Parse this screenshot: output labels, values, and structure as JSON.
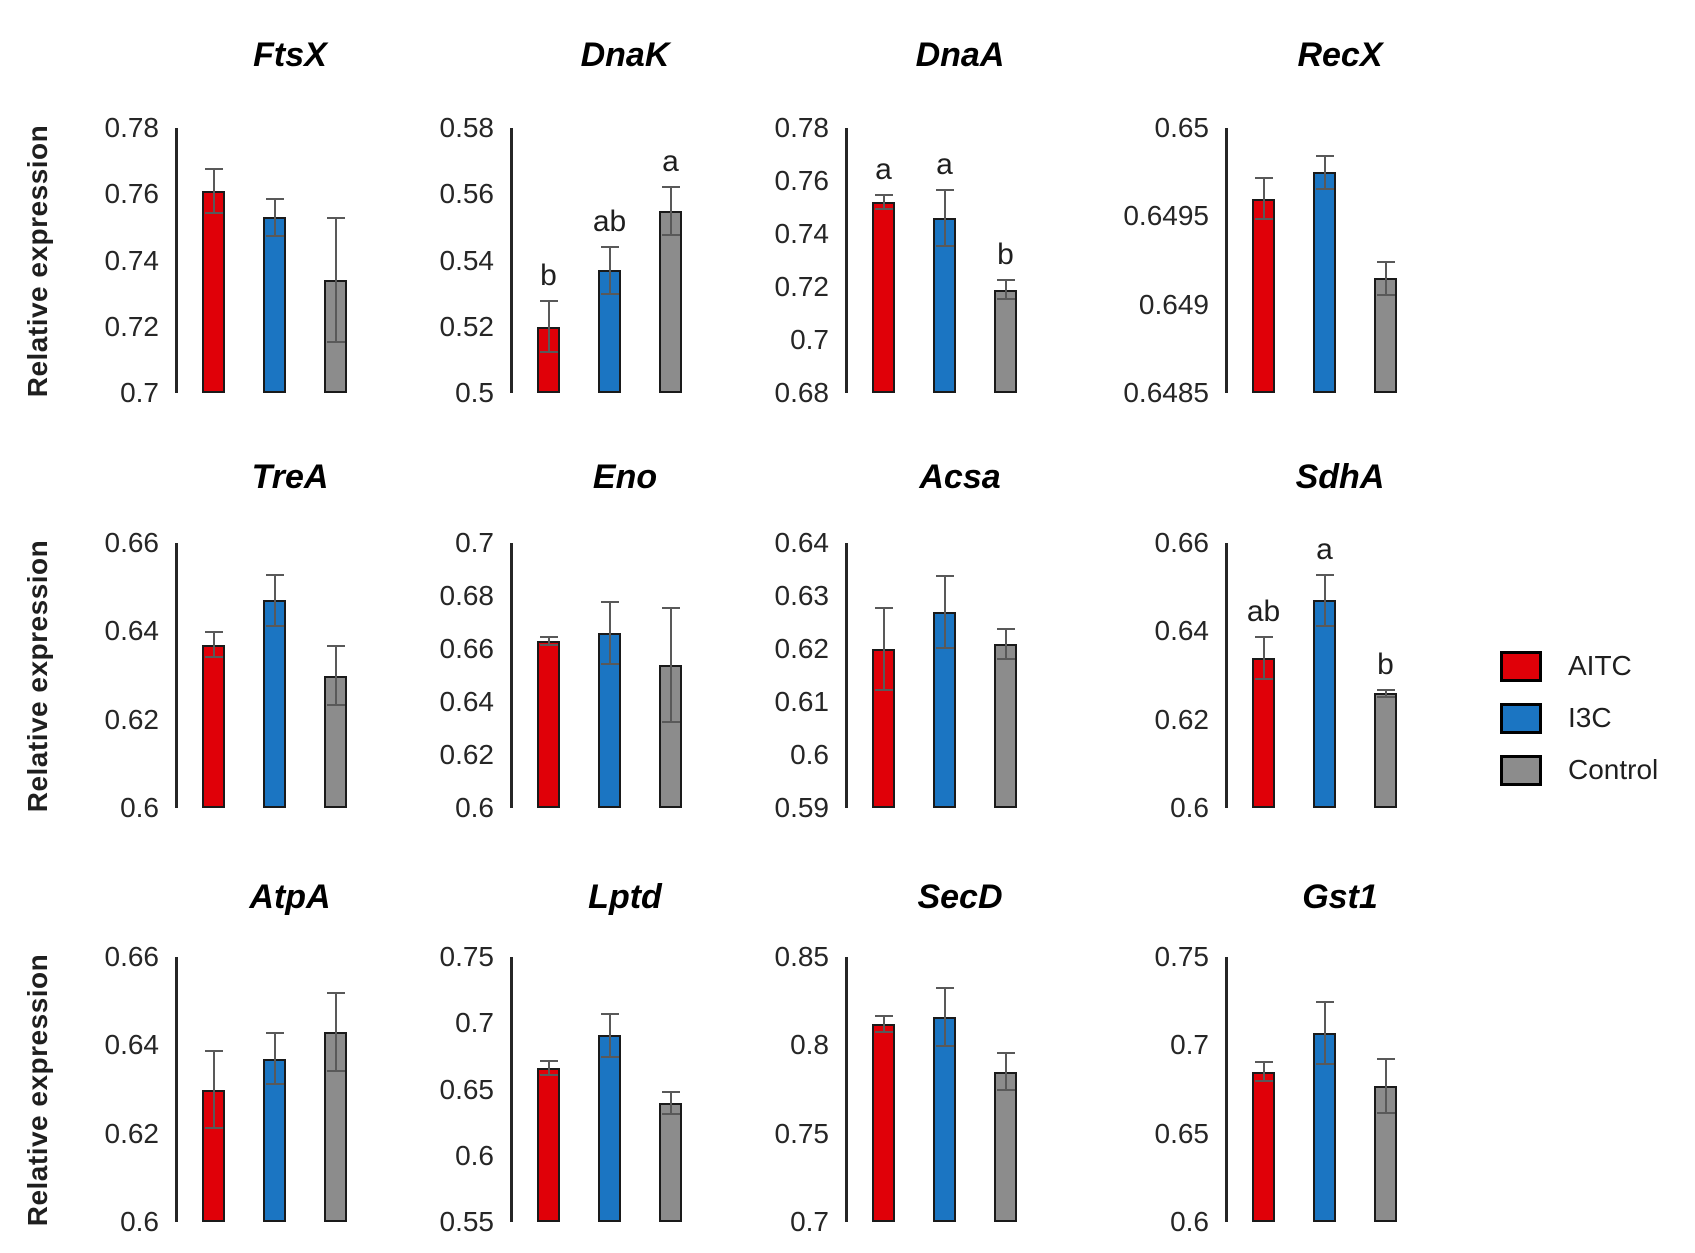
{
  "figure_title": "",
  "row_ylabel": "Relative expression",
  "legend": {
    "entries": [
      {
        "label": "AITC",
        "color": "#e00008"
      },
      {
        "label": "I3C",
        "color": "#1b75c2"
      },
      {
        "label": "Control",
        "color": "#8c8c8c"
      }
    ]
  },
  "chart_data": {
    "type": "bar",
    "layout": {
      "rows": 3,
      "cols": 4,
      "legend_position": "right-middle",
      "grid": "off"
    },
    "ylabel": "Relative expression",
    "series_names": [
      "AITC",
      "I3C",
      "Control"
    ],
    "series_colors": {
      "AITC": "#e00008",
      "I3C": "#1b75c2",
      "Control": "#8c8c8c"
    },
    "charts": [
      {
        "title": "FtsX",
        "ylim": [
          0.7,
          0.78
        ],
        "ticks": [
          0.78,
          0.76,
          0.74,
          0.72,
          0.7
        ],
        "values": [
          0.761,
          0.753,
          0.734
        ],
        "errors": [
          0.007,
          0.006,
          0.019
        ],
        "letters": [
          "",
          "",
          ""
        ]
      },
      {
        "title": "DnaK",
        "ylim": [
          0.5,
          0.58
        ],
        "ticks": [
          0.58,
          0.56,
          0.54,
          0.52,
          0.5
        ],
        "values": [
          0.52,
          0.537,
          0.555
        ],
        "errors": [
          0.008,
          0.0075,
          0.0075
        ],
        "letters": [
          "b",
          "ab",
          "a"
        ]
      },
      {
        "title": "DnaA",
        "ylim": [
          0.68,
          0.78
        ],
        "ticks": [
          0.78,
          0.76,
          0.74,
          0.72,
          0.7,
          0.68
        ],
        "values": [
          0.752,
          0.746,
          0.719
        ],
        "errors": [
          0.003,
          0.011,
          0.004
        ],
        "letters": [
          "a",
          "a",
          "b"
        ]
      },
      {
        "title": "RecX",
        "ylim": [
          0.6485,
          0.65
        ],
        "ticks": [
          0.65,
          0.6495,
          0.649,
          0.6485
        ],
        "values": [
          0.6496,
          0.64975,
          0.64915
        ],
        "errors": [
          0.00012,
          0.0001,
          0.0001
        ],
        "letters": [
          "",
          "",
          ""
        ]
      },
      {
        "title": "TreA",
        "ylim": [
          0.6,
          0.66
        ],
        "ticks": [
          0.66,
          0.64,
          0.62,
          0.6
        ],
        "values": [
          0.637,
          0.647,
          0.63
        ],
        "errors": [
          0.003,
          0.006,
          0.007
        ],
        "letters": [
          "",
          "",
          ""
        ]
      },
      {
        "title": "Eno",
        "ylim": [
          0.6,
          0.7
        ],
        "ticks": [
          0.7,
          0.68,
          0.66,
          0.64,
          0.62,
          0.6
        ],
        "values": [
          0.663,
          0.666,
          0.654
        ],
        "errors": [
          0.002,
          0.012,
          0.022
        ],
        "letters": [
          "",
          "",
          ""
        ]
      },
      {
        "title": "Acsa",
        "ylim": [
          0.59,
          0.64
        ],
        "ticks": [
          0.64,
          0.63,
          0.62,
          0.61,
          0.6,
          0.59
        ],
        "values": [
          0.62,
          0.627,
          0.621
        ],
        "errors": [
          0.008,
          0.007,
          0.003
        ],
        "letters": [
          "",
          "",
          ""
        ]
      },
      {
        "title": "SdhA",
        "ylim": [
          0.6,
          0.66
        ],
        "ticks": [
          0.66,
          0.64,
          0.62,
          0.6
        ],
        "values": [
          0.634,
          0.647,
          0.626
        ],
        "errors": [
          0.005,
          0.006,
          0.001
        ],
        "letters": [
          "ab",
          "a",
          "b"
        ]
      },
      {
        "title": "AtpA",
        "ylim": [
          0.6,
          0.66
        ],
        "ticks": [
          0.66,
          0.64,
          0.62,
          0.6
        ],
        "values": [
          0.63,
          0.637,
          0.643
        ],
        "errors": [
          0.009,
          0.006,
          0.009
        ],
        "letters": [
          "",
          "",
          ""
        ]
      },
      {
        "title": "Lptd",
        "ylim": [
          0.55,
          0.75
        ],
        "ticks": [
          0.75,
          0.7,
          0.65,
          0.6,
          0.55
        ],
        "values": [
          0.666,
          0.691,
          0.64
        ],
        "errors": [
          0.006,
          0.017,
          0.009
        ],
        "letters": [
          "",
          "",
          ""
        ]
      },
      {
        "title": "SecD",
        "ylim": [
          0.7,
          0.85
        ],
        "ticks": [
          0.85,
          0.8,
          0.75,
          0.7
        ],
        "values": [
          0.812,
          0.816,
          0.785
        ],
        "errors": [
          0.005,
          0.017,
          0.011
        ],
        "letters": [
          "",
          "",
          ""
        ]
      },
      {
        "title": "Gst1",
        "ylim": [
          0.6,
          0.75
        ],
        "ticks": [
          0.75,
          0.7,
          0.65,
          0.6
        ],
        "values": [
          0.685,
          0.707,
          0.677
        ],
        "errors": [
          0.006,
          0.018,
          0.016
        ],
        "letters": [
          "",
          "",
          ""
        ]
      }
    ]
  }
}
